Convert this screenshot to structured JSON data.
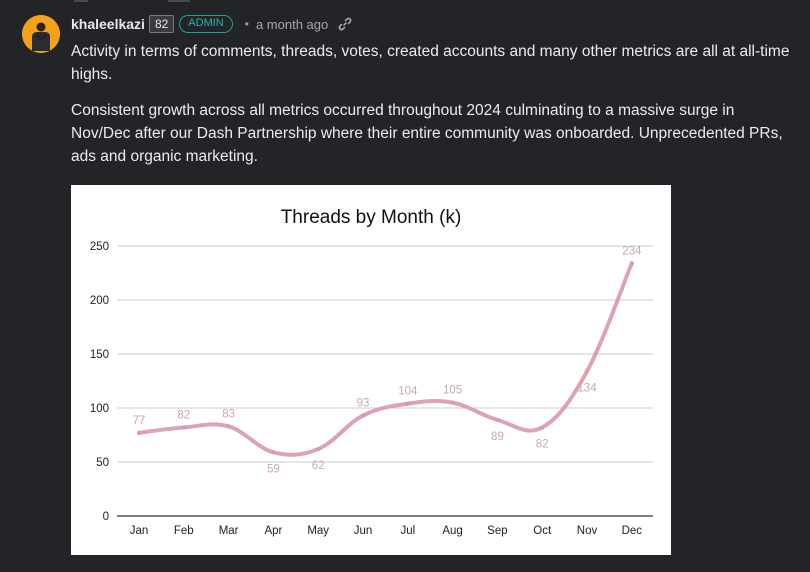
{
  "post": {
    "username": "khaleelkazi",
    "reputation": "82",
    "role_badge": "ADMIN",
    "separator": "•",
    "timestamp": "a month ago",
    "link_icon": "link-icon",
    "avatar_icon": "avatar",
    "paragraphs": [
      "Activity in terms of comments, threads, votes, created accounts and many other metrics are all at all-time highs.",
      "Consistent growth across all metrics occurred throughout 2024 culminating to a massive surge in Nov/Dec after our Dash Partnership where their entire community was onboarded. Unprecedented PRs, ads and organic marketing."
    ]
  },
  "colors": {
    "background": "#232428",
    "admin_badge": "#27b3a8",
    "avatar_bg": "#f2a31b",
    "series_line": "#d99aa6",
    "data_label": "#c8a8ae"
  },
  "chart_data": {
    "type": "line",
    "title": "Threads by Month (k)",
    "xlabel": "",
    "ylabel": "",
    "categories": [
      "Jan",
      "Feb",
      "Mar",
      "Apr",
      "May",
      "Jun",
      "Jul",
      "Aug",
      "Sep",
      "Oct",
      "Nov",
      "Dec"
    ],
    "values": [
      77,
      82,
      83,
      59,
      62,
      93,
      104,
      105,
      89,
      82,
      134,
      234
    ],
    "data_labels": [
      "77",
      "82",
      "83",
      "59",
      "62",
      "93",
      "104",
      "105",
      "89",
      "82",
      "134",
      "234"
    ],
    "label_positions": [
      "above",
      "above",
      "above",
      "below",
      "below",
      "above",
      "above",
      "above",
      "below",
      "below",
      "below",
      "above"
    ],
    "ylim": [
      0,
      250
    ],
    "yticks": [
      0,
      50,
      100,
      150,
      200,
      250
    ],
    "ytick_labels": [
      "0",
      "50",
      "100",
      "150",
      "200",
      "250"
    ],
    "grid": true,
    "legend": "none"
  }
}
